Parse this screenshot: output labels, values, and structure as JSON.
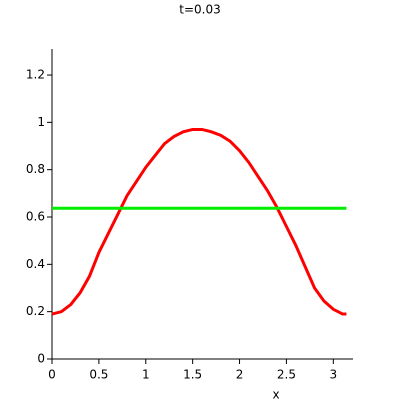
{
  "chart_data": {
    "type": "line",
    "title": "t=0.03",
    "x_label": "x",
    "x": [
      0,
      0.1,
      0.2,
      0.3,
      0.4,
      0.5,
      0.6,
      0.7,
      0.8,
      0.9,
      1.0,
      1.1,
      1.2,
      1.3,
      1.4,
      1.5,
      1.6,
      1.7,
      1.8,
      1.9,
      2.0,
      2.1,
      2.2,
      2.3,
      2.4,
      2.5,
      2.6,
      2.7,
      2.8,
      2.9,
      3.0,
      3.1,
      3.14
    ],
    "series": [
      {
        "color": "#ff0000",
        "values": [
          0.19,
          0.2,
          0.23,
          0.28,
          0.35,
          0.45,
          0.53,
          0.61,
          0.69,
          0.75,
          0.81,
          0.86,
          0.91,
          0.94,
          0.96,
          0.97,
          0.97,
          0.96,
          0.945,
          0.92,
          0.88,
          0.83,
          0.77,
          0.71,
          0.64,
          0.56,
          0.48,
          0.39,
          0.3,
          0.245,
          0.21,
          0.19,
          0.19
        ]
      },
      {
        "color": "#00ee00",
        "values": [
          0.637,
          0.637,
          0.637,
          0.637,
          0.637,
          0.637,
          0.637,
          0.637,
          0.637,
          0.637,
          0.637,
          0.637,
          0.637,
          0.637,
          0.637,
          0.637,
          0.637,
          0.637,
          0.637,
          0.637,
          0.637,
          0.637,
          0.637,
          0.637,
          0.637,
          0.637,
          0.637,
          0.637,
          0.637,
          0.637,
          0.637,
          0.637,
          0.637
        ]
      }
    ],
    "xlim": [
      0,
      3.21
    ],
    "xticks": [
      0,
      0.5,
      1,
      1.5,
      2,
      2.5,
      3
    ],
    "ylim": [
      0,
      1.31
    ],
    "yticks": [
      0,
      0.2,
      0.4,
      0.6,
      0.8,
      1,
      1.2
    ]
  }
}
